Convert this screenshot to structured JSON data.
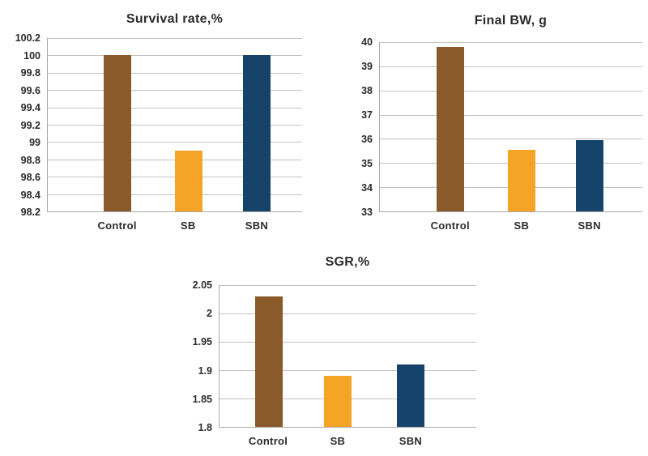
{
  "figure": {
    "background": "#ffffff",
    "text_color": "#2b2b2b",
    "grid_color": "#c2c2c2",
    "axis_color": "#a9a9a9"
  },
  "chart_data": [
    {
      "type": "bar",
      "title": "Survival rate,%",
      "categories": [
        "Control",
        "SB",
        "SBN"
      ],
      "values": [
        100,
        98.9,
        100
      ],
      "bar_colors": [
        "#8a5a2b",
        "#f5a426",
        "#16436a"
      ],
      "ylabel": "",
      "xlabel": "",
      "ylim": [
        98.2,
        100.2
      ],
      "yticks": [
        98.2,
        98.4,
        98.6,
        98.8,
        99,
        99.2,
        99.4,
        99.6,
        99.8,
        100,
        100.2
      ],
      "ytick_labels": [
        "98.2",
        "98.4",
        "98.6",
        "98.8",
        "99",
        "99.2",
        "99.4",
        "99.6",
        "99.8",
        "100",
        "100.2"
      ],
      "grid": true,
      "legend": "none"
    },
    {
      "type": "bar",
      "title": "Final BW, g",
      "categories": [
        "Control",
        "SB",
        "SBN"
      ],
      "values": [
        39.8,
        35.55,
        35.95
      ],
      "bar_colors": [
        "#8a5a2b",
        "#f5a426",
        "#16436a"
      ],
      "ylabel": "",
      "xlabel": "",
      "ylim": [
        33,
        40
      ],
      "yticks": [
        33,
        34,
        35,
        36,
        37,
        38,
        39,
        40
      ],
      "ytick_labels": [
        "33",
        "34",
        "35",
        "36",
        "37",
        "38",
        "39",
        "40"
      ],
      "grid": true,
      "legend": "none"
    },
    {
      "type": "bar",
      "title": "SGR,%",
      "categories": [
        "Control",
        "SB",
        "SBN"
      ],
      "values": [
        2.03,
        1.89,
        1.91
      ],
      "bar_colors": [
        "#8a5a2b",
        "#f5a426",
        "#16436a"
      ],
      "ylabel": "",
      "xlabel": "",
      "ylim": [
        1.8,
        2.05
      ],
      "yticks": [
        1.8,
        1.85,
        1.9,
        1.95,
        2,
        2.05
      ],
      "ytick_labels": [
        "1.8",
        "1.85",
        "1.9",
        "1.95",
        "2",
        "2.05"
      ],
      "grid": true,
      "legend": "none"
    }
  ]
}
